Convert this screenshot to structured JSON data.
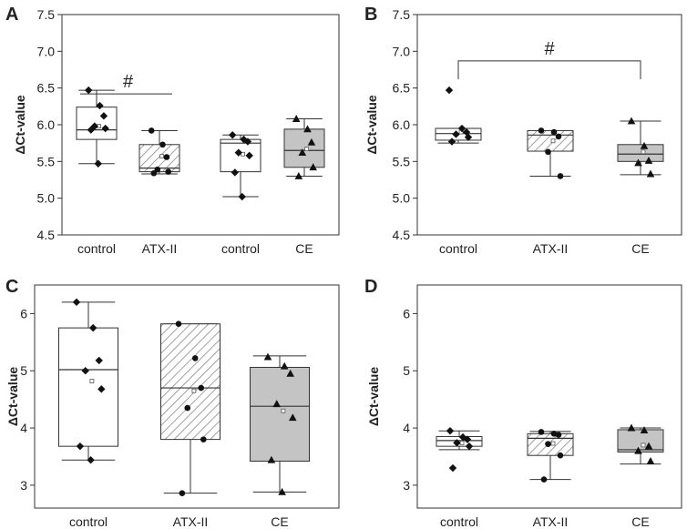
{
  "chart_data": [
    {
      "panel": "A",
      "type": "box",
      "ylabel": "ΔCt-value",
      "ylim": [
        4.5,
        7.5
      ],
      "yticks": [
        "4.5",
        "5.0",
        "5.5",
        "6.0",
        "6.5",
        "7.0",
        "7.5"
      ],
      "categories": [
        "control",
        "ATX-II",
        "control",
        "CE"
      ],
      "series": [
        {
          "name": "control",
          "fill": "white",
          "marker": "diamond",
          "box": {
            "whisker_low": 5.47,
            "q1": 5.8,
            "median": 5.93,
            "q3": 6.24,
            "whisker_high": 6.47,
            "mean": 5.98
          },
          "points": [
            6.47,
            6.26,
            6.12,
            5.98,
            5.95,
            5.93,
            5.47
          ]
        },
        {
          "name": "ATX-II",
          "fill": "hatch",
          "marker": "circle",
          "box": {
            "whisker_low": 5.33,
            "q1": 5.36,
            "median": 5.41,
            "q3": 5.73,
            "whisker_high": 5.92,
            "mean": 5.57
          },
          "points": [
            5.92,
            5.73,
            5.56,
            5.39,
            5.36,
            5.34
          ]
        },
        {
          "name": "control",
          "fill": "white",
          "marker": "diamond",
          "box": {
            "whisker_low": 5.02,
            "q1": 5.36,
            "median": 5.75,
            "q3": 5.8,
            "whisker_high": 5.86,
            "mean": 5.6
          },
          "points": [
            5.86,
            5.8,
            5.77,
            5.62,
            5.58,
            5.35,
            5.02
          ]
        },
        {
          "name": "CE",
          "fill": "gray",
          "marker": "triangle",
          "box": {
            "whisker_low": 5.3,
            "q1": 5.42,
            "median": 5.65,
            "q3": 5.94,
            "whisker_high": 6.08,
            "mean": 5.67
          },
          "points": [
            6.08,
            5.94,
            5.76,
            5.62,
            5.42,
            5.3
          ]
        }
      ],
      "annotations": [
        {
          "text": "#",
          "from": 0,
          "to": 1,
          "y": 6.42,
          "style": "line"
        }
      ]
    },
    {
      "panel": "B",
      "type": "box",
      "ylabel": "ΔCt-value",
      "ylim": [
        4.5,
        7.5
      ],
      "yticks": [
        "4.5",
        "5.0",
        "5.5",
        "6.0",
        "6.5",
        "7.0",
        "7.5"
      ],
      "categories": [
        "control",
        "ATX-II",
        "CE"
      ],
      "series": [
        {
          "name": "control",
          "fill": "white",
          "marker": "diamond",
          "box": {
            "whisker_low": 5.75,
            "q1": 5.79,
            "median": 5.88,
            "q3": 5.95,
            "whisker_high": 5.95,
            "mean": 5.9
          },
          "points": [
            6.47,
            5.95,
            5.9,
            5.87,
            5.83,
            5.77
          ]
        },
        {
          "name": "ATX-II",
          "fill": "hatch",
          "marker": "circle",
          "box": {
            "whisker_low": 5.3,
            "q1": 5.64,
            "median": 5.86,
            "q3": 5.92,
            "whisker_high": 5.92,
            "mean": 5.78
          },
          "points": [
            5.92,
            5.9,
            5.84,
            5.63,
            5.3
          ]
        },
        {
          "name": "CE",
          "fill": "gray",
          "marker": "triangle",
          "box": {
            "whisker_low": 5.32,
            "q1": 5.5,
            "median": 5.6,
            "q3": 5.73,
            "whisker_high": 6.05,
            "mean": 5.63
          },
          "points": [
            6.05,
            5.71,
            5.51,
            5.48,
            5.33
          ]
        }
      ],
      "annotations": [
        {
          "text": "#",
          "from": 0,
          "to": 2,
          "y": 6.87,
          "style": "bracket",
          "drop_to": 6.62
        }
      ]
    },
    {
      "panel": "C",
      "type": "box",
      "ylabel": "ΔCt-value",
      "ylim": [
        2.6,
        6.5
      ],
      "yticks": [
        "3",
        "4",
        "5",
        "6"
      ],
      "categories": [
        "control",
        "ATX-II",
        "CE"
      ],
      "series": [
        {
          "name": "control",
          "fill": "white",
          "marker": "diamond",
          "box": {
            "whisker_low": 3.44,
            "q1": 3.68,
            "median": 5.02,
            "q3": 5.75,
            "whisker_high": 6.2,
            "mean": 4.82
          },
          "points": [
            6.2,
            5.75,
            5.18,
            5.0,
            4.68,
            3.68,
            3.44
          ]
        },
        {
          "name": "ATX-II",
          "fill": "hatch",
          "marker": "circle",
          "box": {
            "whisker_low": 2.86,
            "q1": 3.8,
            "median": 4.7,
            "q3": 5.82,
            "whisker_high": 5.82,
            "mean": 4.65
          },
          "points": [
            5.82,
            5.22,
            4.7,
            4.35,
            3.8,
            2.86
          ]
        },
        {
          "name": "CE",
          "fill": "gray",
          "marker": "triangle",
          "box": {
            "whisker_low": 2.88,
            "q1": 3.42,
            "median": 4.38,
            "q3": 5.06,
            "whisker_high": 5.26,
            "mean": 4.3
          },
          "points": [
            5.24,
            5.08,
            4.95,
            4.42,
            4.18,
            3.44,
            2.88
          ]
        }
      ],
      "annotations": []
    },
    {
      "panel": "D",
      "type": "box",
      "ylabel": "ΔCt-value",
      "ylim": [
        2.6,
        6.5
      ],
      "yticks": [
        "3",
        "4",
        "5",
        "6"
      ],
      "categories": [
        "control",
        "ATX-II",
        "CE"
      ],
      "series": [
        {
          "name": "control",
          "fill": "white",
          "marker": "diamond",
          "box": {
            "whisker_low": 3.62,
            "q1": 3.68,
            "median": 3.78,
            "q3": 3.85,
            "whisker_high": 3.95,
            "mean": 3.74
          },
          "points": [
            3.95,
            3.84,
            3.8,
            3.74,
            3.68,
            3.3
          ]
        },
        {
          "name": "ATX-II",
          "fill": "hatch",
          "marker": "circle",
          "box": {
            "whisker_low": 3.1,
            "q1": 3.52,
            "median": 3.82,
            "q3": 3.9,
            "whisker_high": 3.94,
            "mean": 3.73
          },
          "points": [
            3.93,
            3.9,
            3.88,
            3.72,
            3.52,
            3.1
          ]
        },
        {
          "name": "CE",
          "fill": "gray",
          "marker": "triangle",
          "box": {
            "whisker_low": 3.37,
            "q1": 3.58,
            "median": 3.62,
            "q3": 3.97,
            "whisker_high": 4.0,
            "mean": 3.7
          },
          "points": [
            4.0,
            3.96,
            3.68,
            3.6,
            3.42
          ]
        }
      ],
      "annotations": []
    }
  ],
  "colors": {
    "axis": "#333333",
    "box_stroke": "#333333",
    "gray_fill": "#c4c4c4",
    "hatch_stroke": "#777777",
    "marker": "#111111"
  }
}
